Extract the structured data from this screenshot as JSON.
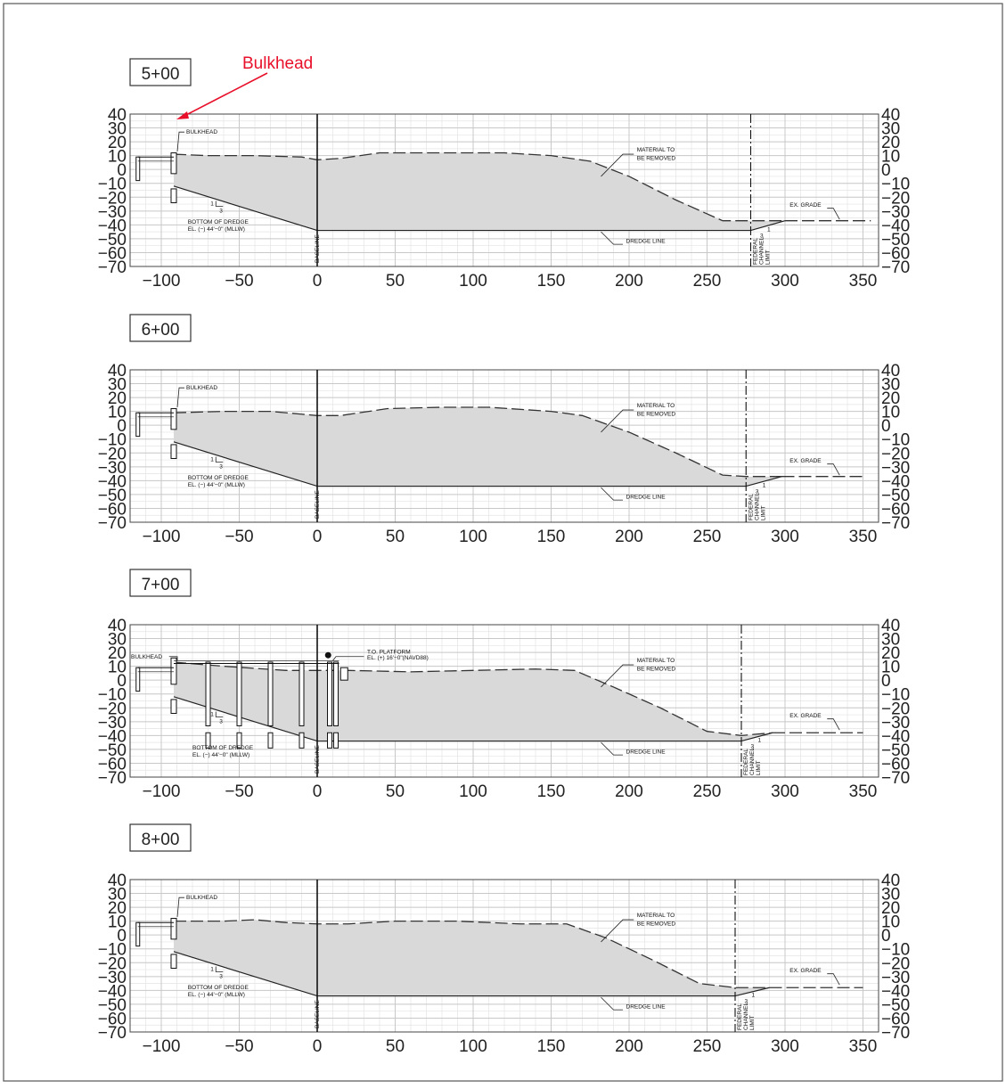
{
  "annotation": {
    "text": "Bulkhead",
    "color": "#e8102a"
  },
  "axis": {
    "x_ticks": [
      -100,
      -50,
      0,
      50,
      100,
      150,
      200,
      250,
      300,
      350
    ],
    "x_tick_labels": [
      "−100",
      "−50",
      "0",
      "50",
      "100",
      "150",
      "200",
      "250",
      "300",
      "350"
    ],
    "y_ticks": [
      40,
      30,
      20,
      10,
      0,
      -10,
      -20,
      -30,
      -40,
      -50,
      -60,
      -70
    ],
    "y_tick_labels": [
      "40",
      "30",
      "20",
      "10",
      "0",
      "−10",
      "−20",
      "−30",
      "−40",
      "−50",
      "−60",
      "−70"
    ],
    "xlim": [
      -120,
      360
    ],
    "ylim": [
      -70,
      40
    ]
  },
  "labels": {
    "bulkhead": "BULKHEAD",
    "material_1": "MATERIAL TO",
    "material_2": "BE REMOVED",
    "dredge_line": "DREDGE LINE",
    "bottom_1": "BOTTOM OF DREDGE",
    "bottom_2": "EL. (−) 44'−0\" (MLLW)",
    "baseline": "BASELINE",
    "ex_grade": "EX. GRADE",
    "federal_1": "FEDERAL",
    "federal_2": "CHANNEL",
    "federal_3": "LIMIT",
    "slope_1": "1",
    "slope_3": "3",
    "platform_1": "T.O. PLATFORM",
    "platform_2": "EL. (+) 16'−0\"(NAVD88)"
  },
  "sections": [
    {
      "station": "5+00",
      "bulkhead_x": -92,
      "federal_x": 278,
      "ex_grade": [
        [
          -92,
          11
        ],
        [
          -70,
          10
        ],
        [
          -40,
          10
        ],
        [
          -10,
          9
        ],
        [
          0,
          7
        ],
        [
          15,
          8
        ],
        [
          40,
          12
        ],
        [
          80,
          12
        ],
        [
          120,
          12
        ],
        [
          150,
          10
        ],
        [
          175,
          6
        ],
        [
          200,
          -5
        ],
        [
          230,
          -22
        ],
        [
          260,
          -37
        ],
        [
          278,
          -37
        ],
        [
          300,
          -37
        ]
      ],
      "ex_grade_right": [
        [
          300,
          -37
        ],
        [
          355,
          -37
        ]
      ],
      "dredge": [
        [
          -92,
          -12
        ],
        [
          0,
          -44
        ],
        [
          278,
          -44
        ],
        [
          300,
          -37
        ]
      ],
      "has_platform": false
    },
    {
      "station": "6+00",
      "bulkhead_x": -92,
      "federal_x": 275,
      "ex_grade": [
        [
          -92,
          9
        ],
        [
          -60,
          10
        ],
        [
          -30,
          10
        ],
        [
          -10,
          8
        ],
        [
          0,
          7
        ],
        [
          15,
          7
        ],
        [
          45,
          12
        ],
        [
          80,
          13
        ],
        [
          110,
          13
        ],
        [
          150,
          10
        ],
        [
          170,
          7
        ],
        [
          200,
          -5
        ],
        [
          230,
          -20
        ],
        [
          260,
          -36
        ],
        [
          275,
          -37
        ],
        [
          298,
          -37
        ]
      ],
      "ex_grade_right": [
        [
          298,
          -37
        ],
        [
          350,
          -37
        ]
      ],
      "dredge": [
        [
          -92,
          -12
        ],
        [
          0,
          -44
        ],
        [
          275,
          -44
        ],
        [
          298,
          -37
        ]
      ],
      "has_platform": false
    },
    {
      "station": "7+00",
      "bulkhead_x": -92,
      "federal_x": 272,
      "ex_grade": [
        [
          -92,
          13
        ],
        [
          -60,
          10
        ],
        [
          -20,
          7
        ],
        [
          0,
          7
        ],
        [
          20,
          7
        ],
        [
          60,
          6
        ],
        [
          100,
          7
        ],
        [
          140,
          8
        ],
        [
          165,
          7
        ],
        [
          190,
          -5
        ],
        [
          220,
          -20
        ],
        [
          250,
          -37
        ],
        [
          272,
          -40
        ],
        [
          292,
          -38
        ]
      ],
      "ex_grade_right": [
        [
          292,
          -38
        ],
        [
          350,
          -38
        ]
      ],
      "dredge": [
        [
          -92,
          -12
        ],
        [
          0,
          -44
        ],
        [
          272,
          -44
        ],
        [
          292,
          -38
        ]
      ],
      "has_platform": true
    },
    {
      "station": "8+00",
      "bulkhead_x": -92,
      "federal_x": 268,
      "ex_grade": [
        [
          -92,
          10
        ],
        [
          -60,
          10
        ],
        [
          -40,
          11
        ],
        [
          -20,
          9
        ],
        [
          0,
          8
        ],
        [
          20,
          8
        ],
        [
          50,
          10
        ],
        [
          90,
          10
        ],
        [
          130,
          8
        ],
        [
          160,
          8
        ],
        [
          185,
          -2
        ],
        [
          215,
          -18
        ],
        [
          245,
          -35
        ],
        [
          268,
          -38
        ],
        [
          290,
          -38
        ]
      ],
      "ex_grade_right": [
        [
          290,
          -38
        ],
        [
          350,
          -38
        ]
      ],
      "dredge": [
        [
          -92,
          -12
        ],
        [
          0,
          -44
        ],
        [
          268,
          -44
        ],
        [
          290,
          -38
        ]
      ],
      "has_platform": false
    }
  ]
}
